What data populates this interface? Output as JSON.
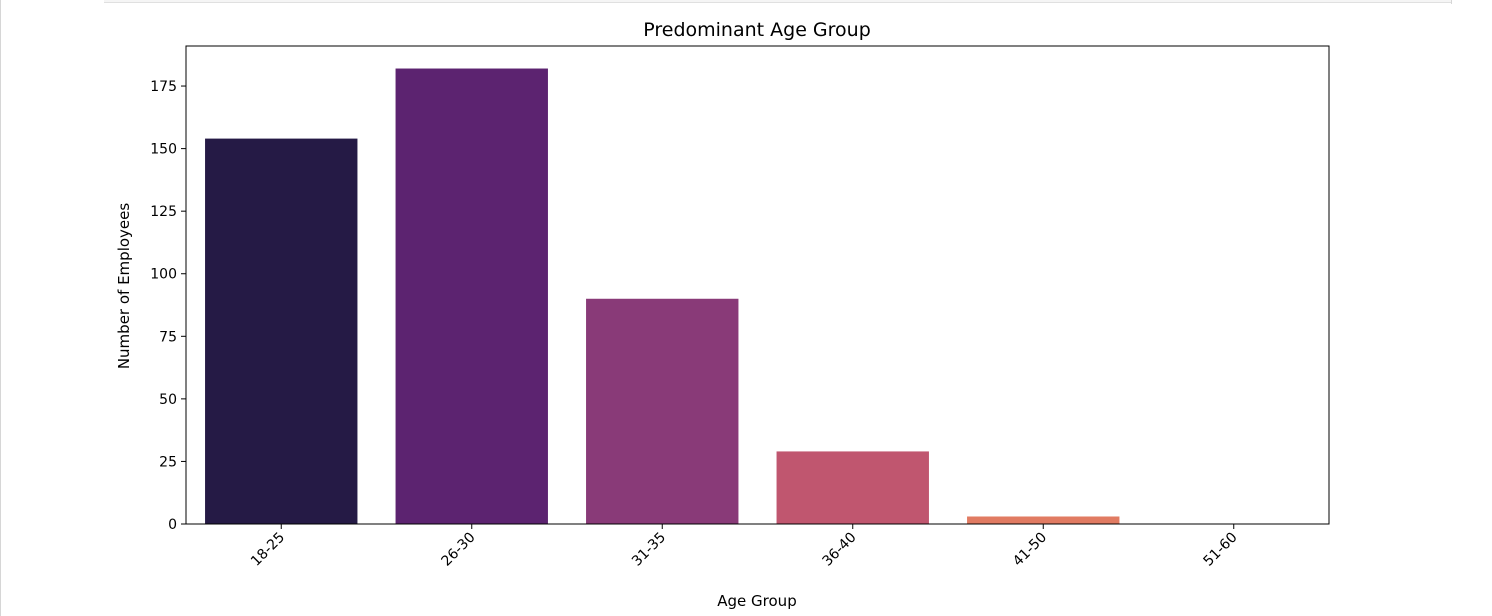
{
  "chart_data": {
    "type": "bar",
    "title": "Predominant Age Group",
    "xlabel": "Age Group",
    "ylabel": "Number of Employees",
    "categories": [
      "18-25",
      "26-30",
      "31-35",
      "36-40",
      "41-50",
      "51-60"
    ],
    "values": [
      154,
      182,
      90,
      29,
      3,
      0
    ],
    "colors": [
      "#251a45",
      "#5c2370",
      "#893a78",
      "#c0566f",
      "#e17b62",
      "#f5b78a"
    ],
    "ylim": [
      0,
      191
    ],
    "yticks": [
      0,
      25,
      50,
      75,
      100,
      125,
      150,
      175
    ],
    "grid": false,
    "legend": "none"
  }
}
